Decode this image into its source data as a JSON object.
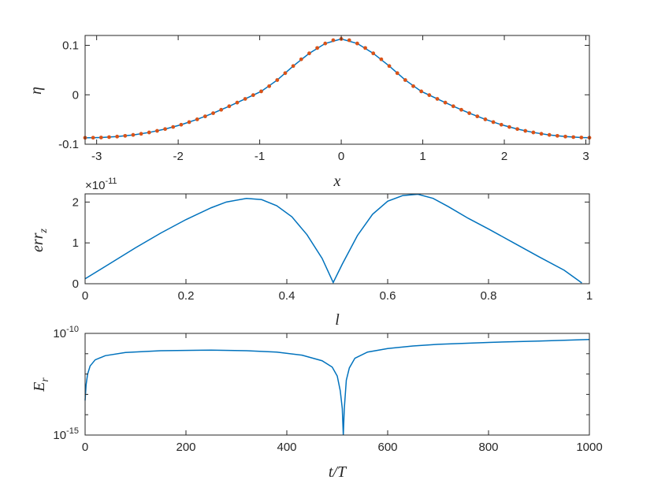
{
  "colors": {
    "line": "#0072BD",
    "marker": "#D95319",
    "axes": "#262626"
  },
  "chart_data": [
    {
      "type": "line",
      "xlabel": "x",
      "ylabel": "η",
      "xlim": [
        -3.1416,
        3.0434
      ],
      "ylim": [
        -0.1,
        0.12
      ],
      "xticks": [
        -3,
        -2,
        -1,
        0,
        1,
        2,
        3
      ],
      "yticks": [
        -0.1,
        0,
        0.1
      ],
      "xticklabels": [
        "-3",
        "-2",
        "-1",
        "0",
        "1",
        "2",
        "3"
      ],
      "yticklabels": [
        "-0.1",
        "0",
        "0.1"
      ],
      "grid": false,
      "series": [
        {
          "style": "line",
          "x": [
            -3.1416,
            -2.9452,
            -2.7489,
            -2.5525,
            -2.3562,
            -2.1598,
            -1.9635,
            -1.7671,
            -1.5708,
            -1.3744,
            -1.1781,
            -0.9817,
            -0.7854,
            -0.589,
            -0.3927,
            -0.1963,
            0,
            0.1963,
            0.3927,
            0.589,
            0.7854,
            0.9817,
            1.1781,
            1.3744,
            1.5708,
            1.7671,
            1.9635,
            2.1598,
            2.3562,
            2.5525,
            2.7489,
            2.9452,
            3.0434
          ],
          "y": [
            -0.087,
            -0.0864,
            -0.0845,
            -0.0812,
            -0.0762,
            -0.0693,
            -0.0605,
            -0.0497,
            -0.0372,
            -0.0232,
            -0.0083,
            0.0069,
            0.0298,
            0.0582,
            0.0838,
            0.1038,
            0.113,
            0.1038,
            0.0838,
            0.0582,
            0.0298,
            0.0069,
            -0.0083,
            -0.0232,
            -0.0372,
            -0.0497,
            -0.0605,
            -0.0693,
            -0.0762,
            -0.0812,
            -0.0845,
            -0.0864,
            -0.0868
          ]
        },
        {
          "style": "markers",
          "x": [
            -3.1416,
            -3.0434,
            -2.9452,
            -2.8471,
            -2.7489,
            -2.6507,
            -2.5525,
            -2.4544,
            -2.3562,
            -2.258,
            -2.1598,
            -2.0617,
            -1.9635,
            -1.8653,
            -1.7671,
            -1.669,
            -1.5708,
            -1.4726,
            -1.3744,
            -1.2763,
            -1.1781,
            -1.0799,
            -0.9817,
            -0.8836,
            -0.7854,
            -0.6872,
            -0.589,
            -0.4909,
            -0.3927,
            -0.2945,
            -0.1963,
            -0.0982,
            0,
            0.0982,
            0.1963,
            0.2945,
            0.3927,
            0.4909,
            0.589,
            0.6872,
            0.7854,
            0.8836,
            0.9817,
            1.0799,
            1.1781,
            1.2763,
            1.3744,
            1.4726,
            1.5708,
            1.669,
            1.7671,
            1.8653,
            1.9635,
            2.0617,
            2.1598,
            2.258,
            2.3562,
            2.4544,
            2.5525,
            2.6507,
            2.7489,
            2.8471,
            2.9452,
            3.0434
          ],
          "y": [
            -0.087,
            -0.0868,
            -0.0864,
            -0.0856,
            -0.0845,
            -0.083,
            -0.0812,
            -0.0789,
            -0.0762,
            -0.073,
            -0.0693,
            -0.0651,
            -0.0605,
            -0.0553,
            -0.0497,
            -0.0436,
            -0.0372,
            -0.0303,
            -0.0232,
            -0.0158,
            -0.0083,
            -0.0007,
            0.0069,
            0.0174,
            0.0298,
            0.0438,
            0.0582,
            0.0718,
            0.0838,
            0.0947,
            0.1038,
            0.1104,
            0.113,
            0.1104,
            0.1038,
            0.0947,
            0.0838,
            0.0718,
            0.0582,
            0.0438,
            0.0298,
            0.0174,
            0.0069,
            -0.0007,
            -0.0083,
            -0.0158,
            -0.0232,
            -0.0303,
            -0.0372,
            -0.0436,
            -0.0497,
            -0.0553,
            -0.0605,
            -0.0651,
            -0.0693,
            -0.073,
            -0.0762,
            -0.0789,
            -0.0812,
            -0.083,
            -0.0845,
            -0.0856,
            -0.0864,
            -0.0868
          ]
        }
      ]
    },
    {
      "type": "line",
      "xlabel": "l",
      "ylabel": "err_z",
      "xlim": [
        0,
        1
      ],
      "ylim": [
        0,
        2.2
      ],
      "exponent_label": "×10^-11",
      "xticks": [
        0,
        0.2,
        0.4,
        0.6,
        0.8,
        1
      ],
      "yticks": [
        0,
        1,
        2
      ],
      "xticklabels": [
        "0",
        "0.2",
        "0.4",
        "0.6",
        "0.8",
        "1"
      ],
      "yticklabels": [
        "0",
        "1",
        "2"
      ],
      "grid": false,
      "series": [
        {
          "x": [
            0,
            0.05,
            0.1,
            0.15,
            0.2,
            0.25,
            0.28,
            0.32,
            0.35,
            0.38,
            0.41,
            0.44,
            0.47,
            0.492,
            0.51,
            0.54,
            0.57,
            0.6,
            0.63,
            0.66,
            0.69,
            0.72,
            0.76,
            0.8,
            0.85,
            0.9,
            0.95,
            0.985
          ],
          "y": [
            0.12,
            0.5,
            0.88,
            1.24,
            1.57,
            1.86,
            2.0,
            2.09,
            2.06,
            1.91,
            1.64,
            1.2,
            0.62,
            0.03,
            0.48,
            1.18,
            1.7,
            2.02,
            2.16,
            2.19,
            2.09,
            1.89,
            1.6,
            1.34,
            1.0,
            0.66,
            0.33,
            0.02
          ]
        }
      ]
    },
    {
      "type": "line",
      "xlabel": "t/T",
      "ylabel": "E_r",
      "xlim": [
        0,
        1000
      ],
      "ylim": [
        1e-15,
        1e-10
      ],
      "yscale": "log",
      "xticks": [
        0,
        200,
        400,
        600,
        800,
        1000
      ],
      "yticks": [
        1e-15,
        1e-10
      ],
      "xticklabels": [
        "0",
        "200",
        "400",
        "600",
        "800",
        "1000"
      ],
      "yticklabels": [
        "10^-15",
        "10^-10"
      ],
      "grid": false,
      "series": [
        {
          "x": [
            0,
            2,
            5,
            10,
            20,
            40,
            80,
            150,
            250,
            320,
            380,
            430,
            470,
            490,
            500,
            506,
            510,
            512,
            514,
            518,
            524,
            535,
            560,
            600,
            650,
            700,
            800,
            900,
            1000
          ],
          "y": [
            5e-14,
            3e-13,
            1e-12,
            2.5e-12,
            5e-12,
            8e-12,
            1.15e-11,
            1.4e-11,
            1.5e-11,
            1.4e-11,
            1.2e-11,
            8.5e-12,
            4.5e-12,
            2.2e-12,
            8e-13,
            1.5e-13,
            2e-14,
            1e-15,
            2e-14,
            5e-13,
            2e-12,
            6e-12,
            1.2e-11,
            1.8e-11,
            2.4e-11,
            2.9e-11,
            3.6e-11,
            4.2e-11,
            5e-11
          ]
        }
      ]
    }
  ]
}
